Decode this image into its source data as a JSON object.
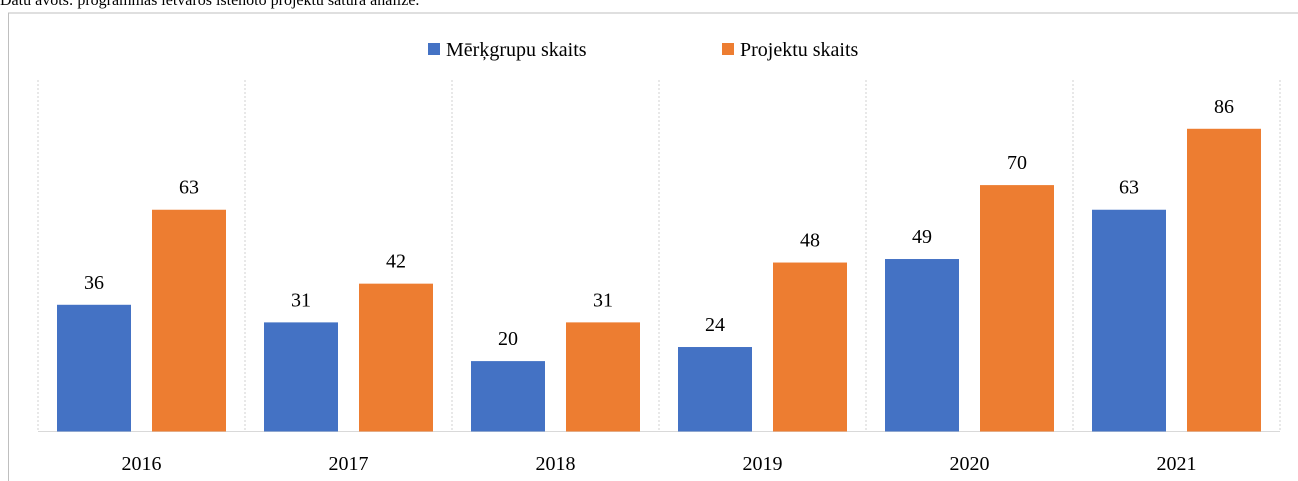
{
  "chart_data": {
    "type": "bar",
    "caption": "Datu avots: programmas ietvaros īstenoto projektu satura analīze.",
    "categories": [
      "2016",
      "2017",
      "2018",
      "2019",
      "2020",
      "2021"
    ],
    "series": [
      {
        "name": "Mērķgrupu skaits",
        "color": "#4472c4",
        "values": [
          36,
          31,
          20,
          24,
          49,
          63
        ]
      },
      {
        "name": "Projektu skaits",
        "color": "#ed7d31",
        "values": [
          63,
          42,
          31,
          48,
          70,
          86
        ]
      }
    ],
    "ylim": [
      0,
      100
    ],
    "legend": "top"
  }
}
